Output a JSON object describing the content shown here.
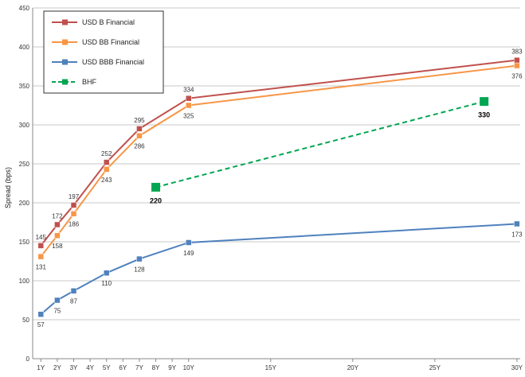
{
  "chart_data": {
    "type": "line",
    "title": "",
    "xlabel": "",
    "ylabel": "Spread (bps)",
    "ylim": [
      0,
      450
    ],
    "y_ticks": [
      0,
      50,
      100,
      150,
      200,
      250,
      300,
      350,
      400,
      450
    ],
    "x_range": [
      0.5,
      30.2
    ],
    "x_ticks": [
      {
        "x": 1,
        "label": "1Y"
      },
      {
        "x": 2,
        "label": "2Y"
      },
      {
        "x": 3,
        "label": "3Y"
      },
      {
        "x": 4,
        "label": "4Y"
      },
      {
        "x": 5,
        "label": "5Y"
      },
      {
        "x": 6,
        "label": "6Y"
      },
      {
        "x": 7,
        "label": "7Y"
      },
      {
        "x": 8,
        "label": "8Y"
      },
      {
        "x": 9,
        "label": "9Y"
      },
      {
        "x": 10,
        "label": "10Y"
      },
      {
        "x": 15,
        "label": "15Y"
      },
      {
        "x": 20,
        "label": "20Y"
      },
      {
        "x": 25,
        "label": "25Y"
      },
      {
        "x": 30,
        "label": "30Y"
      }
    ],
    "grid": "horizontal",
    "legend_position": "top-left",
    "series": [
      {
        "name": "USD B Financial",
        "color": "#c0504d",
        "style": "solid",
        "label_position": "above",
        "points": [
          {
            "x": 1,
            "y": 145
          },
          {
            "x": 2,
            "y": 172
          },
          {
            "x": 3,
            "y": 197
          },
          {
            "x": 5,
            "y": 252
          },
          {
            "x": 7,
            "y": 295
          },
          {
            "x": 10,
            "y": 334
          },
          {
            "x": 30,
            "y": 383
          }
        ]
      },
      {
        "name": "USD BB Financial",
        "color": "#f79646",
        "style": "solid",
        "label_position": "below",
        "points": [
          {
            "x": 1,
            "y": 131
          },
          {
            "x": 2,
            "y": 158
          },
          {
            "x": 3,
            "y": 186
          },
          {
            "x": 5,
            "y": 243
          },
          {
            "x": 7,
            "y": 286
          },
          {
            "x": 10,
            "y": 325
          },
          {
            "x": 30,
            "y": 376
          }
        ]
      },
      {
        "name": "USD BBB Financial",
        "color": "#4f81bd",
        "style": "solid",
        "label_position": "below",
        "points": [
          {
            "x": 1,
            "y": 57
          },
          {
            "x": 2,
            "y": 75
          },
          {
            "x": 3,
            "y": 87
          },
          {
            "x": 5,
            "y": 110
          },
          {
            "x": 7,
            "y": 128
          },
          {
            "x": 10,
            "y": 149
          },
          {
            "x": 30,
            "y": 173
          }
        ]
      },
      {
        "name": "BHF",
        "color": "#00a651",
        "style": "dashed",
        "label_position": "below",
        "points": [
          {
            "x": 8,
            "y": 220
          },
          {
            "x": 28,
            "y": 330
          }
        ]
      }
    ]
  }
}
